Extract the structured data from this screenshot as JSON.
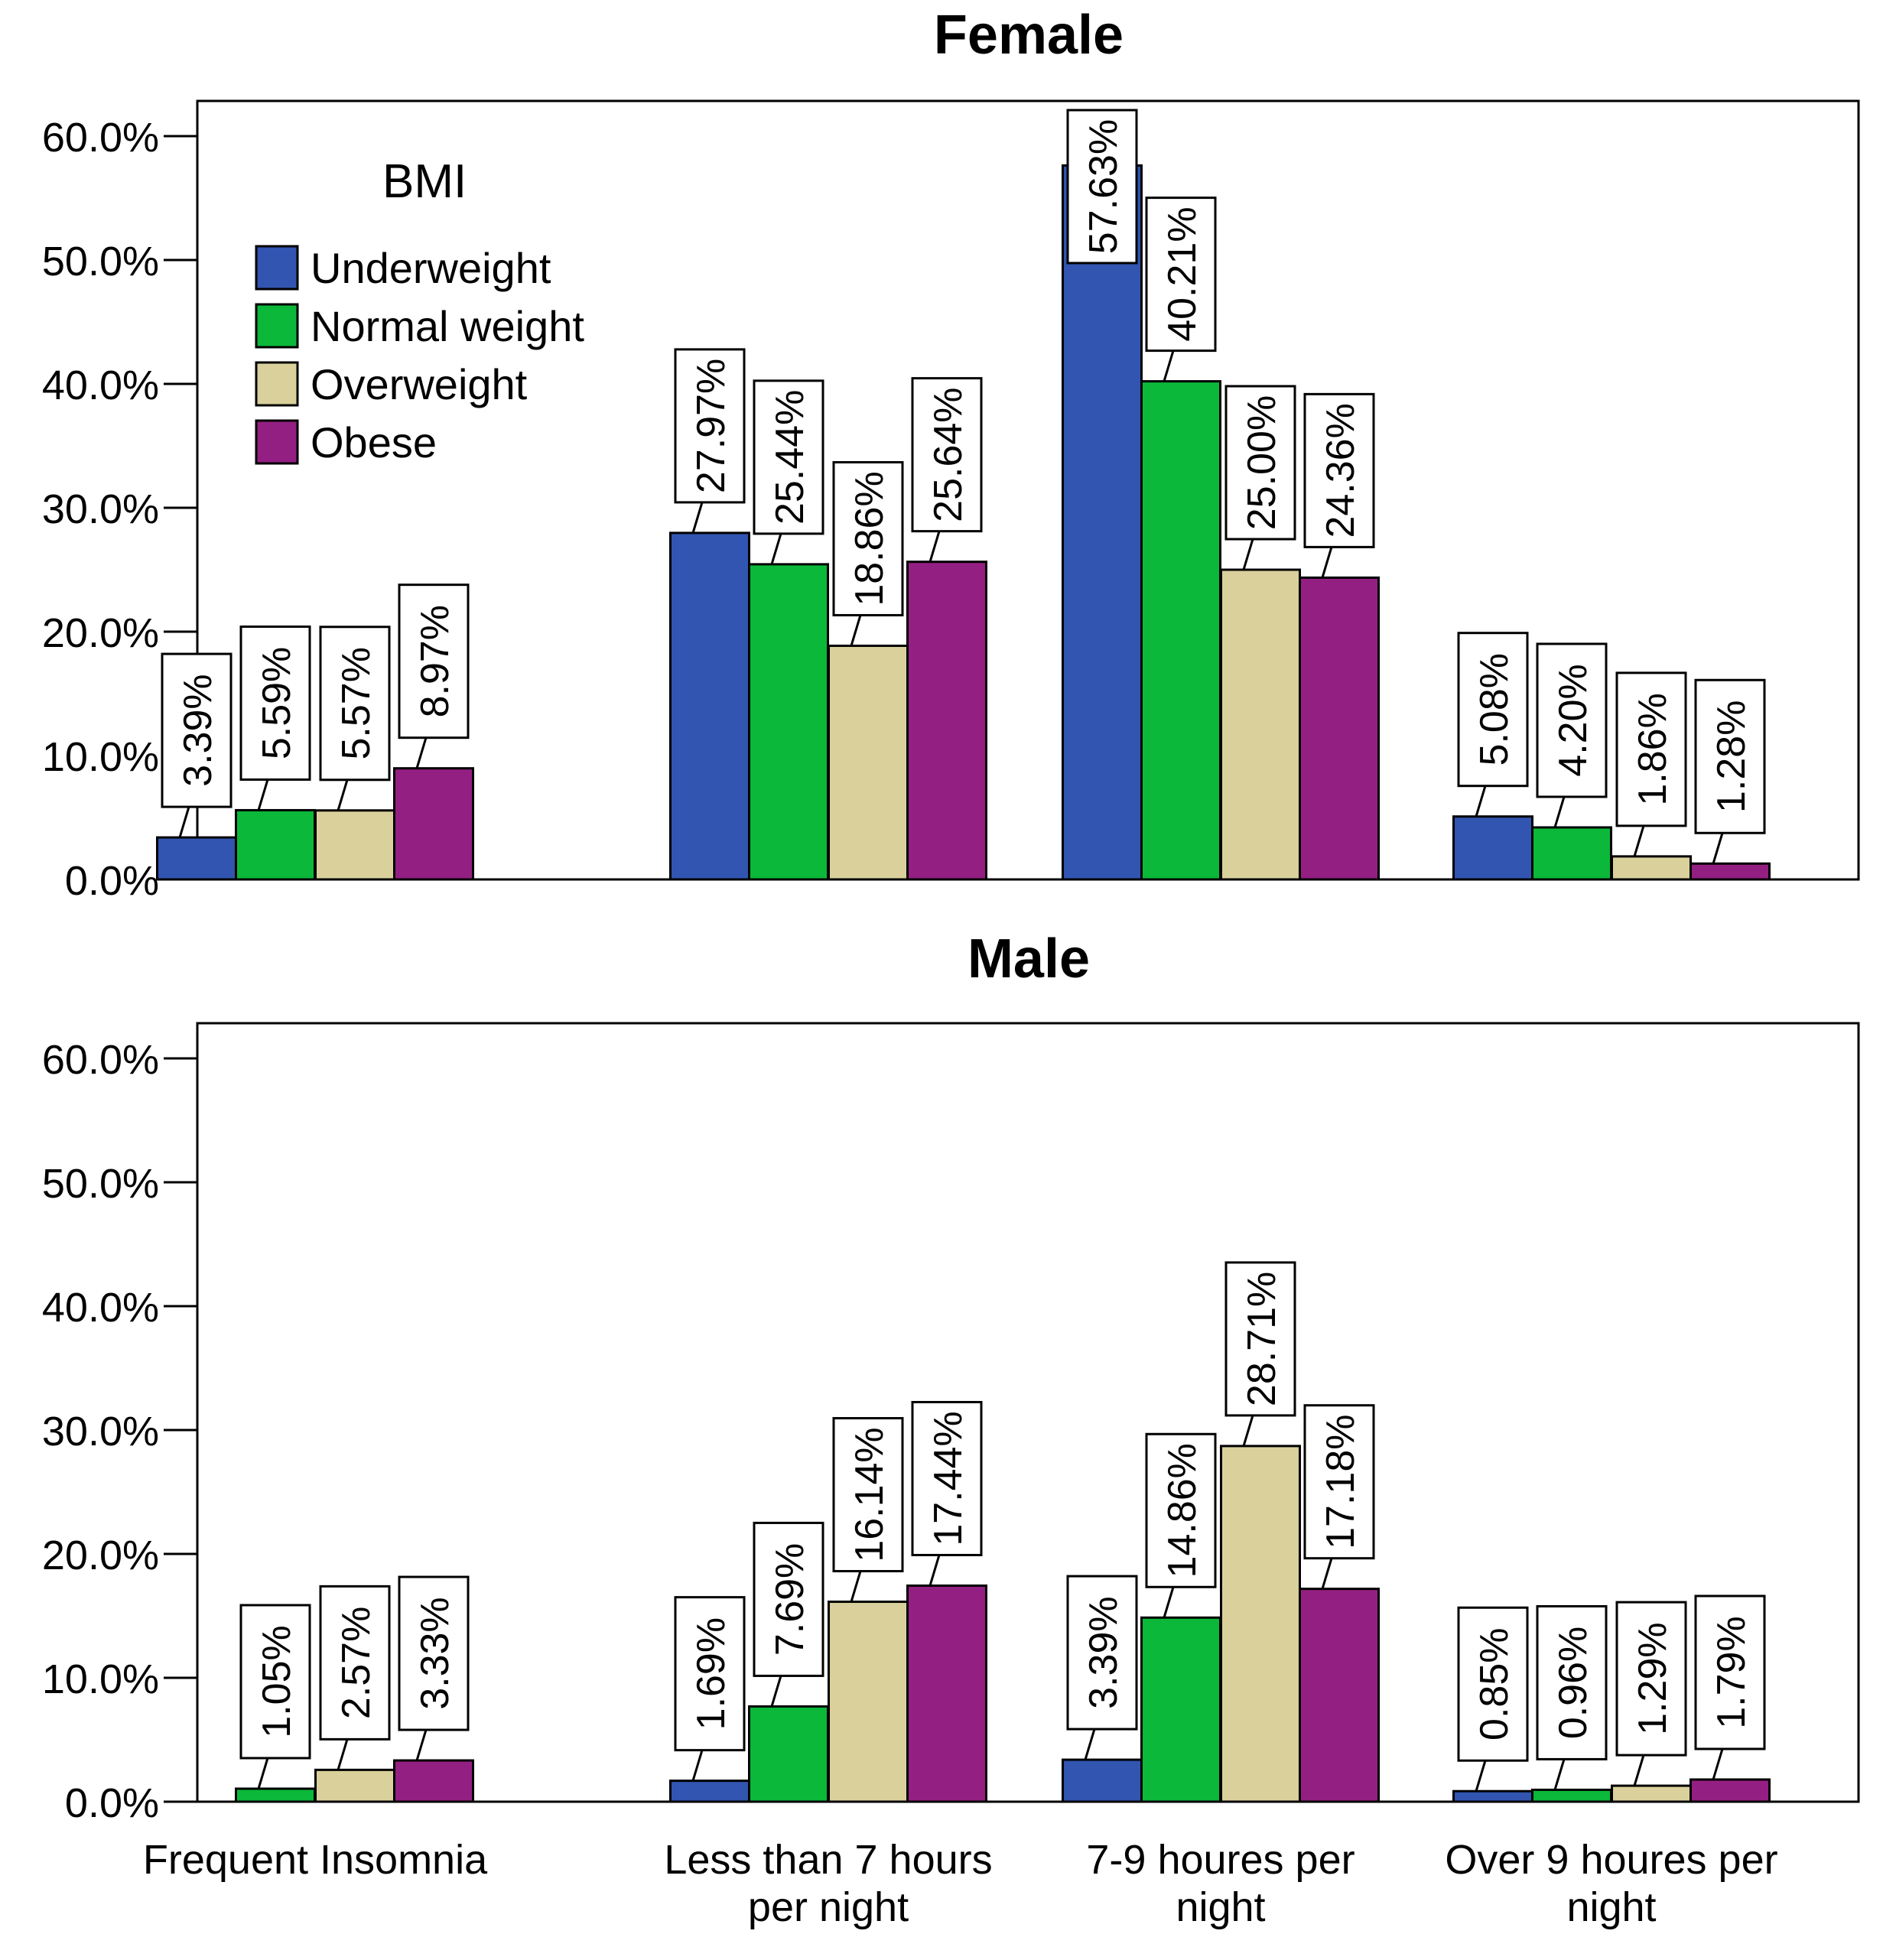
{
  "chart_data": [
    {
      "type": "bar",
      "title": "Female",
      "categories": [
        "Frequent Insomnia",
        "Less than 7 hours per night",
        "7-9 houres per night",
        "Over 9 houres per night"
      ],
      "category_lines": [
        [
          "Frequent Insomnia"
        ],
        [
          "Less than 7 hours",
          "per night"
        ],
        [
          "7-9 houres per",
          "night"
        ],
        [
          "Over 9 houres per",
          "night"
        ]
      ],
      "ylim": [
        0,
        60
      ],
      "yticks": [
        "0.0%",
        "10.0%",
        "20.0%",
        "30.0%",
        "40.0%",
        "50.0%",
        "60.0%"
      ],
      "legend_title": "BMI",
      "legend_position": "top-left",
      "series": [
        {
          "name": "Underweight",
          "color": "#3155b0",
          "values": [
            3.39,
            27.97,
            57.63,
            5.08
          ],
          "labels": [
            "3.39%",
            "27.97%",
            "57.63%",
            "5.08%"
          ]
        },
        {
          "name": "Normal weight",
          "color": "#0bb839",
          "values": [
            5.59,
            25.44,
            40.21,
            4.2
          ],
          "labels": [
            "5.59%",
            "25.44%",
            "40.21%",
            "4.20%"
          ]
        },
        {
          "name": "Overweight",
          "color": "#d9d09b",
          "values": [
            5.57,
            18.86,
            25.0,
            1.86
          ],
          "labels": [
            "5.57%",
            "18.86%",
            "25.00%",
            "1.86%"
          ]
        },
        {
          "name": "Obese",
          "color": "#941f82",
          "values": [
            8.97,
            25.64,
            24.36,
            1.28
          ],
          "labels": [
            "8.97%",
            "25.64%",
            "24.36%",
            "1.28%"
          ]
        }
      ]
    },
    {
      "type": "bar",
      "title": "Male",
      "categories": [
        "Frequent Insomnia",
        "Less than 7 hours per night",
        "7-9 houres per night",
        "Over 9 houres per night"
      ],
      "category_lines": [
        [
          "Frequent Insomnia"
        ],
        [
          "Less than 7 hours",
          "per night"
        ],
        [
          "7-9 houres per",
          "night"
        ],
        [
          "Over 9 houres per",
          "night"
        ]
      ],
      "ylim": [
        0,
        60
      ],
      "yticks": [
        "0.0%",
        "10.0%",
        "20.0%",
        "30.0%",
        "40.0%",
        "50.0%",
        "60.0%"
      ],
      "series": [
        {
          "name": "Underweight",
          "color": "#3155b0",
          "values": [
            0,
            1.69,
            3.39,
            0.85
          ],
          "labels": [
            null,
            "1.69%",
            "3.39%",
            "0.85%"
          ]
        },
        {
          "name": "Normal weight",
          "color": "#0bb839",
          "values": [
            1.05,
            7.69,
            14.86,
            0.96
          ],
          "labels": [
            "1.05%",
            "7.69%",
            "14.86%",
            "0.96%"
          ]
        },
        {
          "name": "Overweight",
          "color": "#d9d09b",
          "values": [
            2.57,
            16.14,
            28.71,
            1.29
          ],
          "labels": [
            "2.57%",
            "16.14%",
            "28.71%",
            "1.29%"
          ]
        },
        {
          "name": "Obese",
          "color": "#941f82",
          "values": [
            3.33,
            17.44,
            17.18,
            1.79
          ],
          "labels": [
            "3.33%",
            "17.44%",
            "17.18%",
            "1.79%"
          ]
        }
      ]
    }
  ]
}
